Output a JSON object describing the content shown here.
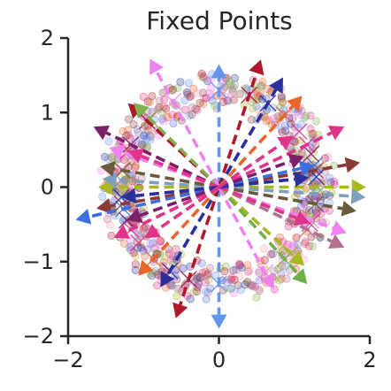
{
  "chart_data": {
    "type": "scatter",
    "title": "Fixed Points",
    "xlabel": "",
    "ylabel": "",
    "xlim": [
      -2,
      2
    ],
    "ylim": [
      -2,
      2
    ],
    "xticks": [
      -2,
      0,
      2
    ],
    "yticks": [
      -2,
      -1,
      0,
      1,
      2
    ],
    "xtick_labels": [
      "−2",
      "0",
      "2"
    ],
    "ytick_labels": [
      "−2",
      "−1",
      "0",
      "1",
      "2"
    ],
    "grid": false,
    "ring_radius": 1.3,
    "fixed_point_directions": [
      {
        "angle_deg": 90,
        "color": "#6495ed",
        "length": 1.65
      },
      {
        "angle_deg": 270,
        "color": "#6495ed",
        "length": 1.9
      },
      {
        "angle_deg": 72,
        "color": "#b0172a",
        "length": 1.8
      },
      {
        "angle_deg": 252,
        "color": "#b0172a",
        "length": 1.85
      },
      {
        "angle_deg": 60,
        "color": "#2a2f9b",
        "length": 1.7
      },
      {
        "angle_deg": 240,
        "color": "#2a2f9b",
        "length": 1.55
      },
      {
        "angle_deg": 48,
        "color": "#e8662a",
        "length": 1.65
      },
      {
        "angle_deg": 228,
        "color": "#e8662a",
        "length": 1.6
      },
      {
        "angle_deg": 26,
        "color": "#e0338a",
        "length": 1.85
      },
      {
        "angle_deg": 206,
        "color": "#e0338a",
        "length": 1.55
      },
      {
        "angle_deg": 10,
        "color": "#8b3a3a",
        "length": 1.9
      },
      {
        "angle_deg": 190,
        "color": "#8b3a3a",
        "length": 1.65
      },
      {
        "angle_deg": 0,
        "color": "#a8b820",
        "length": 1.95
      },
      {
        "angle_deg": 180,
        "color": "#a8b820",
        "length": 1.6
      },
      {
        "angle_deg": -4,
        "color": "#7f9fbf",
        "length": 1.95
      },
      {
        "angle_deg": 176,
        "color": "#7f9fbf",
        "length": 1.55
      },
      {
        "angle_deg": -10,
        "color": "#6b5a3a",
        "length": 1.85
      },
      {
        "angle_deg": 170,
        "color": "#6b5a3a",
        "length": 1.6
      },
      {
        "angle_deg": -20,
        "color": "#ee82ee",
        "length": 1.8
      },
      {
        "angle_deg": 160,
        "color": "#ee82ee",
        "length": 1.55
      },
      {
        "angle_deg": -26,
        "color": "#b07090",
        "length": 1.85
      },
      {
        "angle_deg": 154,
        "color": "#7b1f6a",
        "length": 1.85
      },
      {
        "angle_deg": 137,
        "color": "#b0172a",
        "length": 1.65
      },
      {
        "angle_deg": -43,
        "color": "#a8b820",
        "length": 1.55
      },
      {
        "angle_deg": 135,
        "color": "#7fb050",
        "length": 1.6
      },
      {
        "angle_deg": -48,
        "color": "#6fb04a",
        "length": 1.75
      },
      {
        "angle_deg": 118,
        "color": "#ee82ee",
        "length": 1.95
      },
      {
        "angle_deg": -62,
        "color": "#ee82ee",
        "length": 1.55
      },
      {
        "angle_deg": 193,
        "color": "#3a6fdd",
        "length": 1.95
      },
      {
        "angle_deg": 13,
        "color": "#3a6fdd",
        "length": 1.3
      },
      {
        "angle_deg": 158,
        "color": "#e0338a",
        "length": 1.3
      },
      {
        "angle_deg": -22,
        "color": "#e0338a",
        "length": 1.3
      },
      {
        "angle_deg": 200,
        "color": "#7b1f6a",
        "length": 1.3
      },
      {
        "angle_deg": 20,
        "color": "#7b1f6a",
        "length": 1.2
      },
      {
        "angle_deg": 186,
        "color": "#2a2f9b",
        "length": 1.3
      },
      {
        "angle_deg": 6,
        "color": "#2a2f9b",
        "length": 1.2
      },
      {
        "angle_deg": 215,
        "color": "#e0338a",
        "length": 1.2
      },
      {
        "angle_deg": 35,
        "color": "#e0338a",
        "length": 1.2
      }
    ]
  }
}
